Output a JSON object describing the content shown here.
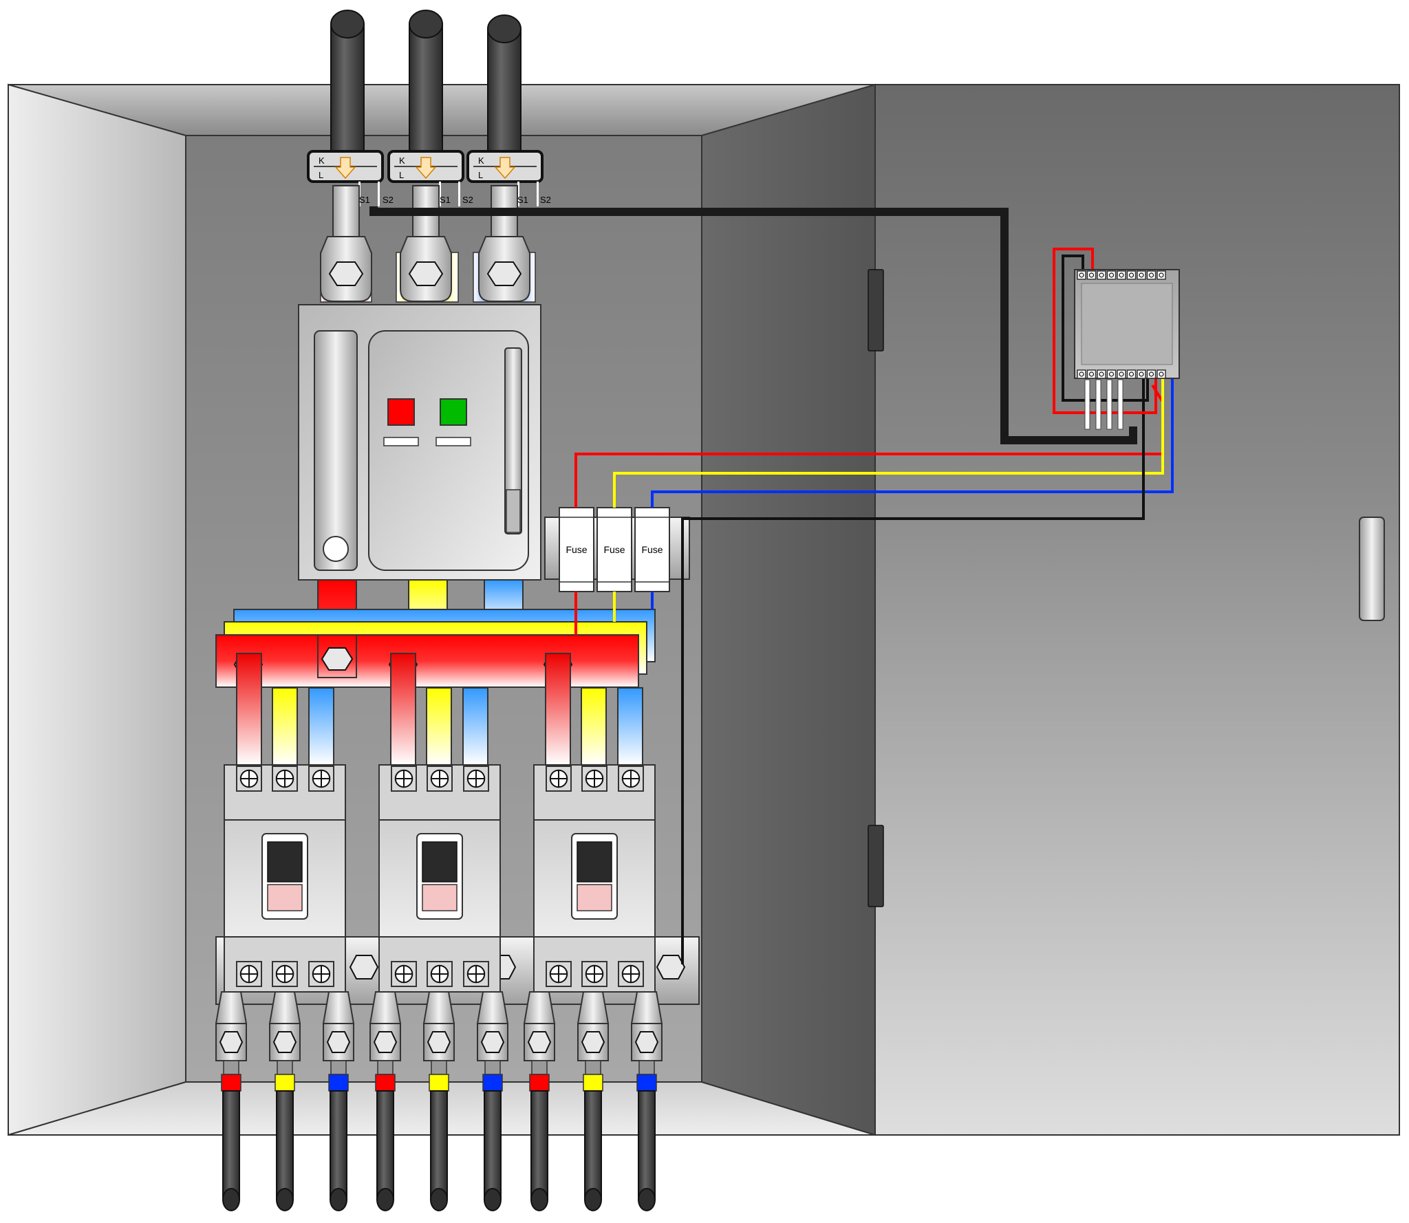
{
  "ct_labels": {
    "k": "K",
    "l": "L",
    "s1": "S1",
    "s2": "S2"
  },
  "fuses": [
    {
      "label": "Fuse"
    },
    {
      "label": "Fuse"
    },
    {
      "label": "Fuse"
    }
  ],
  "phase_colors": {
    "phase_a": "#ff0000",
    "phase_b": "#ffff00",
    "phase_c": "#0030ff",
    "ct_secondary": "#111111"
  },
  "breaker_indicators": {
    "stop_button": "#ff0000",
    "start_button": "#00bb00"
  },
  "icons": [
    "arrow-down-icon",
    "hex-bolt-icon",
    "terminal-screw-icon",
    "door-hinge-icon",
    "door-handle-icon"
  ]
}
